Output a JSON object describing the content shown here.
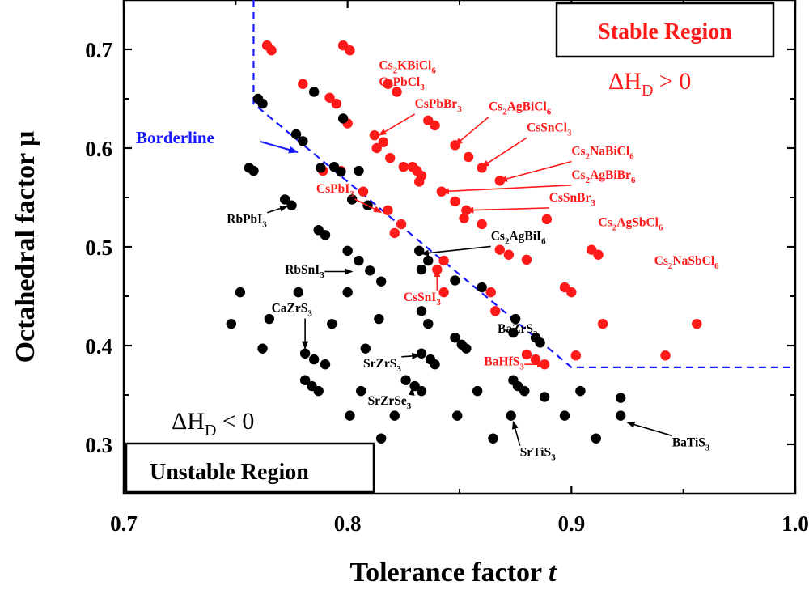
{
  "chart_data": {
    "type": "scatter",
    "xlabel": "Tolerance factor",
    "xlabel_italic": "t",
    "ylabel": "Octahedral factor μ",
    "xlim": [
      0.7,
      1.0
    ],
    "ylim": [
      0.25,
      0.75
    ],
    "xticks": [
      "0.7",
      "0.8",
      "0.9",
      "1.0"
    ],
    "yticks": [
      "0.3",
      "0.4",
      "0.5",
      "0.6",
      "0.7"
    ],
    "colors": {
      "stable": "#ff1a1a",
      "unstable": "#000000",
      "borderline": "#1a1aff",
      "stable_text": "#ff1a1a",
      "unstable_text": "#000000"
    },
    "regions": {
      "stable": {
        "label": "Stable Region",
        "dh_main": "ΔH",
        "dh_sub": "D",
        "dh_rel": " > 0"
      },
      "unstable": {
        "label": "Unstable Region",
        "dh_main": "ΔH",
        "dh_sub": "D",
        "dh_rel": " < 0"
      }
    },
    "borderline": {
      "label": "Borderline",
      "points": [
        [
          0.758,
          0.75
        ],
        [
          0.758,
          0.645
        ],
        [
          0.9,
          0.378
        ],
        [
          1.0,
          0.378
        ]
      ]
    },
    "series": [
      {
        "color": "red",
        "points": [
          [
            0.764,
            0.704
          ],
          [
            0.766,
            0.699
          ],
          [
            0.798,
            0.704
          ],
          [
            0.801,
            0.699
          ],
          [
            0.78,
            0.665
          ],
          [
            0.818,
            0.665
          ],
          [
            0.822,
            0.657
          ],
          [
            0.792,
            0.651
          ],
          [
            0.795,
            0.645
          ],
          [
            0.8,
            0.625
          ],
          [
            0.836,
            0.628
          ],
          [
            0.839,
            0.623
          ],
          [
            0.812,
            0.613
          ],
          [
            0.813,
            0.6
          ],
          [
            0.816,
            0.606
          ],
          [
            0.819,
            0.59
          ],
          [
            0.825,
            0.581
          ],
          [
            0.829,
            0.581
          ],
          [
            0.831,
            0.577
          ],
          [
            0.833,
            0.572
          ],
          [
            0.832,
            0.566
          ],
          [
            0.848,
            0.603
          ],
          [
            0.854,
            0.591
          ],
          [
            0.86,
            0.58
          ],
          [
            0.868,
            0.567
          ],
          [
            0.789,
            0.577
          ],
          [
            0.797,
            0.577
          ],
          [
            0.842,
            0.556
          ],
          [
            0.848,
            0.546
          ],
          [
            0.853,
            0.537
          ],
          [
            0.852,
            0.529
          ],
          [
            0.86,
            0.523
          ],
          [
            0.807,
            0.556
          ],
          [
            0.818,
            0.537
          ],
          [
            0.824,
            0.523
          ],
          [
            0.821,
            0.514
          ],
          [
            0.889,
            0.528
          ],
          [
            0.868,
            0.497
          ],
          [
            0.872,
            0.492
          ],
          [
            0.88,
            0.487
          ],
          [
            0.909,
            0.497
          ],
          [
            0.912,
            0.492
          ],
          [
            0.843,
            0.486
          ],
          [
            0.84,
            0.477
          ],
          [
            0.843,
            0.454
          ],
          [
            0.864,
            0.454
          ],
          [
            0.866,
            0.435
          ],
          [
            0.897,
            0.459
          ],
          [
            0.9,
            0.454
          ],
          [
            0.914,
            0.422
          ],
          [
            0.956,
            0.422
          ],
          [
            0.88,
            0.391
          ],
          [
            0.884,
            0.386
          ],
          [
            0.888,
            0.381
          ],
          [
            0.902,
            0.39
          ],
          [
            0.942,
            0.39
          ]
        ]
      },
      {
        "color": "black",
        "points": [
          [
            0.76,
            0.65
          ],
          [
            0.762,
            0.645
          ],
          [
            0.785,
            0.657
          ],
          [
            0.798,
            0.63
          ],
          [
            0.777,
            0.614
          ],
          [
            0.78,
            0.607
          ],
          [
            0.788,
            0.58
          ],
          [
            0.794,
            0.581
          ],
          [
            0.797,
            0.576
          ],
          [
            0.756,
            0.58
          ],
          [
            0.758,
            0.577
          ],
          [
            0.805,
            0.577
          ],
          [
            0.772,
            0.548
          ],
          [
            0.775,
            0.542
          ],
          [
            0.802,
            0.548
          ],
          [
            0.809,
            0.542
          ],
          [
            0.787,
            0.517
          ],
          [
            0.79,
            0.512
          ],
          [
            0.8,
            0.496
          ],
          [
            0.805,
            0.486
          ],
          [
            0.81,
            0.476
          ],
          [
            0.815,
            0.465
          ],
          [
            0.832,
            0.496
          ],
          [
            0.836,
            0.486
          ],
          [
            0.833,
            0.477
          ],
          [
            0.848,
            0.466
          ],
          [
            0.86,
            0.459
          ],
          [
            0.752,
            0.454
          ],
          [
            0.778,
            0.454
          ],
          [
            0.8,
            0.454
          ],
          [
            0.765,
            0.427
          ],
          [
            0.748,
            0.422
          ],
          [
            0.793,
            0.422
          ],
          [
            0.814,
            0.427
          ],
          [
            0.833,
            0.435
          ],
          [
            0.836,
            0.422
          ],
          [
            0.875,
            0.427
          ],
          [
            0.762,
            0.397
          ],
          [
            0.781,
            0.392
          ],
          [
            0.785,
            0.386
          ],
          [
            0.79,
            0.381
          ],
          [
            0.808,
            0.397
          ],
          [
            0.833,
            0.392
          ],
          [
            0.837,
            0.386
          ],
          [
            0.839,
            0.381
          ],
          [
            0.848,
            0.408
          ],
          [
            0.851,
            0.401
          ],
          [
            0.853,
            0.397
          ],
          [
            0.874,
            0.413
          ],
          [
            0.884,
            0.408
          ],
          [
            0.886,
            0.403
          ],
          [
            0.781,
            0.365
          ],
          [
            0.784,
            0.359
          ],
          [
            0.787,
            0.354
          ],
          [
            0.806,
            0.354
          ],
          [
            0.826,
            0.365
          ],
          [
            0.83,
            0.359
          ],
          [
            0.833,
            0.354
          ],
          [
            0.858,
            0.354
          ],
          [
            0.874,
            0.365
          ],
          [
            0.876,
            0.359
          ],
          [
            0.879,
            0.354
          ],
          [
            0.888,
            0.348
          ],
          [
            0.904,
            0.354
          ],
          [
            0.922,
            0.347
          ],
          [
            0.801,
            0.329
          ],
          [
            0.821,
            0.329
          ],
          [
            0.849,
            0.329
          ],
          [
            0.873,
            0.329
          ],
          [
            0.897,
            0.329
          ],
          [
            0.922,
            0.329
          ],
          [
            0.815,
            0.306
          ],
          [
            0.865,
            0.306
          ],
          [
            0.911,
            0.306
          ]
        ]
      }
    ],
    "annotations": [
      {
        "label": "Cs2KBiCl6",
        "color": "red",
        "text": [
          {
            "t": "Cs"
          },
          {
            "t": "2",
            "sub": true
          },
          {
            "t": "KBiCl"
          },
          {
            "t": "6",
            "sub": true
          }
        ],
        "tx": 0.814,
        "ty": 0.68,
        "arrow": false
      },
      {
        "label": "CsPbCl3",
        "color": "red",
        "text": [
          {
            "t": "CsPbCl"
          },
          {
            "t": "3",
            "sub": true
          }
        ],
        "tx": 0.814,
        "ty": 0.663,
        "arrow": false
      },
      {
        "label": "CsPbBr3",
        "color": "red",
        "text": [
          {
            "t": "CsPbBr"
          },
          {
            "t": "3",
            "sub": true
          }
        ],
        "tx": 0.83,
        "ty": 0.641,
        "arrow": true,
        "ax": 0.814,
        "ay": 0.613
      },
      {
        "label": "Cs2AgBiCl6",
        "color": "red",
        "text": [
          {
            "t": "Cs"
          },
          {
            "t": "2",
            "sub": true
          },
          {
            "t": "AgBiCl"
          },
          {
            "t": "6",
            "sub": true
          }
        ],
        "tx": 0.863,
        "ty": 0.638,
        "arrow": true,
        "ax": 0.848,
        "ay": 0.603
      },
      {
        "label": "CsSnCl3",
        "color": "red",
        "text": [
          {
            "t": "CsSnCl"
          },
          {
            "t": "3",
            "sub": true
          }
        ],
        "tx": 0.88,
        "ty": 0.617,
        "arrow": true,
        "ax": 0.86,
        "ay": 0.581
      },
      {
        "label": "Cs2NaBiCl6",
        "color": "red",
        "text": [
          {
            "t": "Cs"
          },
          {
            "t": "2",
            "sub": true
          },
          {
            "t": "NaBiCl"
          },
          {
            "t": "6",
            "sub": true
          }
        ],
        "tx": 0.9,
        "ty": 0.593,
        "arrow": true,
        "ax": 0.868,
        "ay": 0.567
      },
      {
        "label": "Cs2AgBiBr6",
        "color": "red",
        "text": [
          {
            "t": "Cs"
          },
          {
            "t": "2",
            "sub": true
          },
          {
            "t": "AgBiBr"
          },
          {
            "t": "6",
            "sub": true
          }
        ],
        "tx": 0.9,
        "ty": 0.569,
        "arrow": true,
        "ax": 0.842,
        "ay": 0.556
      },
      {
        "label": "CsSnBr3",
        "color": "red",
        "text": [
          {
            "t": "CsSnBr"
          },
          {
            "t": "3",
            "sub": true
          }
        ],
        "tx": 0.89,
        "ty": 0.546,
        "arrow": true,
        "ax": 0.853,
        "ay": 0.537
      },
      {
        "label": "Cs2AgSbCl6",
        "color": "red",
        "text": [
          {
            "t": "Cs"
          },
          {
            "t": "2",
            "sub": true
          },
          {
            "t": "AgSbCl"
          },
          {
            "t": "6",
            "sub": true
          }
        ],
        "tx": 0.912,
        "ty": 0.521,
        "arrow": false
      },
      {
        "label": "Cs2NaSbCl6",
        "color": "red",
        "text": [
          {
            "t": "Cs"
          },
          {
            "t": "2",
            "sub": true
          },
          {
            "t": "NaSbCl"
          },
          {
            "t": "6",
            "sub": true
          }
        ],
        "tx": 0.937,
        "ty": 0.482,
        "arrow": false
      },
      {
        "label": "CsPbI3",
        "color": "red",
        "text": [
          {
            "t": "CsPbI"
          },
          {
            "t": "3",
            "sub": true
          }
        ],
        "tx": 0.786,
        "ty": 0.555,
        "arrow": true,
        "ax": 0.815,
        "ay": 0.535
      },
      {
        "label": "CsSnI3",
        "color": "red",
        "text": [
          {
            "t": "CsSnI"
          },
          {
            "t": "3",
            "sub": true
          }
        ],
        "tx": 0.825,
        "ty": 0.445,
        "arrow": true,
        "ax": 0.84,
        "ay": 0.477
      },
      {
        "label": "BaHfS3",
        "color": "red",
        "text": [
          {
            "t": "BaHfS"
          },
          {
            "t": "3",
            "sub": true
          }
        ],
        "tx": 0.861,
        "ty": 0.38,
        "arrow": true,
        "ax": 0.888,
        "ay": 0.381
      },
      {
        "label": "Cs2AgBiI6",
        "color": "black",
        "text": [
          {
            "t": "Cs"
          },
          {
            "t": "2",
            "sub": true
          },
          {
            "t": "AgBiI"
          },
          {
            "t": "6",
            "sub": true
          }
        ],
        "tx": 0.864,
        "ty": 0.507,
        "arrow": true,
        "ax": 0.833,
        "ay": 0.493
      },
      {
        "label": "RbPbI3",
        "color": "black",
        "text": [
          {
            "t": "RbPbI"
          },
          {
            "t": "3",
            "sub": true
          }
        ],
        "tx": 0.746,
        "ty": 0.524,
        "arrow": true,
        "ax": 0.773,
        "ay": 0.541
      },
      {
        "label": "RbSnI3",
        "color": "black",
        "text": [
          {
            "t": "RbSnI"
          },
          {
            "t": "3",
            "sub": true
          }
        ],
        "tx": 0.772,
        "ty": 0.473,
        "arrow": true,
        "ax": 0.802,
        "ay": 0.475
      },
      {
        "label": "CaZrS3",
        "color": "black",
        "text": [
          {
            "t": "CaZrS"
          },
          {
            "t": "3",
            "sub": true
          }
        ],
        "tx": 0.766,
        "ty": 0.434,
        "arrow": true,
        "ax": 0.781,
        "ay": 0.397
      },
      {
        "label": "BaZrS3",
        "color": "black",
        "text": [
          {
            "t": "BaZrS"
          },
          {
            "t": "3",
            "sub": true
          }
        ],
        "tx": 0.867,
        "ty": 0.413,
        "arrow": true,
        "ax": 0.885,
        "ay": 0.401
      },
      {
        "label": "SrZrS3",
        "color": "black",
        "text": [
          {
            "t": "SrZrS"
          },
          {
            "t": "3",
            "sub": true
          }
        ],
        "tx": 0.807,
        "ty": 0.378,
        "arrow": true,
        "ax": 0.832,
        "ay": 0.39
      },
      {
        "label": "SrZrSe3",
        "color": "black",
        "text": [
          {
            "t": "SrZrSe"
          },
          {
            "t": "3",
            "sub": true
          }
        ],
        "tx": 0.809,
        "ty": 0.34,
        "arrow": true,
        "ax": 0.829,
        "ay": 0.357
      },
      {
        "label": "SrTiS3",
        "color": "black",
        "text": [
          {
            "t": "SrTiS"
          },
          {
            "t": "3",
            "sub": true
          }
        ],
        "tx": 0.877,
        "ty": 0.288,
        "arrow": true,
        "ax": 0.874,
        "ay": 0.323
      },
      {
        "label": "BaTiS3",
        "color": "black",
        "text": [
          {
            "t": "BaTiS"
          },
          {
            "t": "3",
            "sub": true
          }
        ],
        "tx": 0.945,
        "ty": 0.298,
        "arrow": true,
        "ax": 0.925,
        "ay": 0.322
      }
    ]
  }
}
